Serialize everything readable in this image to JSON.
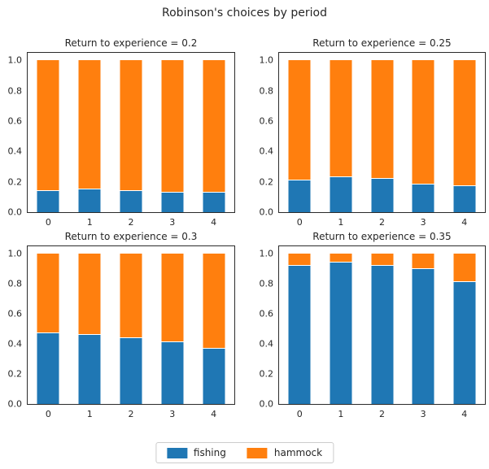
{
  "figure": {
    "title": "Robinson's choices by period"
  },
  "chart_data": [
    {
      "type": "bar",
      "stacked": true,
      "title": "Return to experience = 0.2",
      "xlabel": "",
      "ylabel": "",
      "categories": [
        "0",
        "1",
        "2",
        "3",
        "4"
      ],
      "series": [
        {
          "name": "fishing",
          "color": "#1f77b4",
          "values": [
            0.14,
            0.15,
            0.14,
            0.13,
            0.13
          ]
        },
        {
          "name": "hammock",
          "color": "#ff7f0e",
          "values": [
            0.86,
            0.85,
            0.86,
            0.87,
            0.87
          ]
        }
      ],
      "ylim": [
        0,
        1.0
      ],
      "yticks": [
        0,
        0.2,
        0.4,
        0.6,
        0.8,
        1.0
      ],
      "grid": false
    },
    {
      "type": "bar",
      "stacked": true,
      "title": "Return to experience = 0.25",
      "xlabel": "",
      "ylabel": "",
      "categories": [
        "0",
        "1",
        "2",
        "3",
        "4"
      ],
      "series": [
        {
          "name": "fishing",
          "color": "#1f77b4",
          "values": [
            0.21,
            0.23,
            0.22,
            0.18,
            0.17
          ]
        },
        {
          "name": "hammock",
          "color": "#ff7f0e",
          "values": [
            0.79,
            0.77,
            0.78,
            0.82,
            0.83
          ]
        }
      ],
      "ylim": [
        0,
        1.0
      ],
      "yticks": [
        0,
        0.2,
        0.4,
        0.6,
        0.8,
        1.0
      ],
      "grid": false
    },
    {
      "type": "bar",
      "stacked": true,
      "title": "Return to experience = 0.3",
      "xlabel": "",
      "ylabel": "",
      "categories": [
        "0",
        "1",
        "2",
        "3",
        "4"
      ],
      "series": [
        {
          "name": "fishing",
          "color": "#1f77b4",
          "values": [
            0.47,
            0.46,
            0.44,
            0.41,
            0.37
          ]
        },
        {
          "name": "hammock",
          "color": "#ff7f0e",
          "values": [
            0.53,
            0.54,
            0.56,
            0.59,
            0.63
          ]
        }
      ],
      "ylim": [
        0,
        1.0
      ],
      "yticks": [
        0,
        0.2,
        0.4,
        0.6,
        0.8,
        1.0
      ],
      "grid": false
    },
    {
      "type": "bar",
      "stacked": true,
      "title": "Return to experience = 0.35",
      "xlabel": "",
      "ylabel": "",
      "categories": [
        "0",
        "1",
        "2",
        "3",
        "4"
      ],
      "series": [
        {
          "name": "fishing",
          "color": "#1f77b4",
          "values": [
            0.92,
            0.94,
            0.92,
            0.9,
            0.81
          ]
        },
        {
          "name": "hammock",
          "color": "#ff7f0e",
          "values": [
            0.08,
            0.06,
            0.08,
            0.1,
            0.19
          ]
        }
      ],
      "ylim": [
        0,
        1.0
      ],
      "yticks": [
        0,
        0.2,
        0.4,
        0.6,
        0.8,
        1.0
      ],
      "grid": false
    }
  ],
  "legend": {
    "position": "lower center",
    "items": [
      {
        "label": "fishing",
        "color": "#1f77b4"
      },
      {
        "label": "hammock",
        "color": "#ff7f0e"
      }
    ]
  },
  "colors": {
    "fishing": "#1f77b4",
    "hammock": "#ff7f0e",
    "text": "#262626",
    "spine": "#2b2b2b",
    "background": "#ffffff"
  }
}
